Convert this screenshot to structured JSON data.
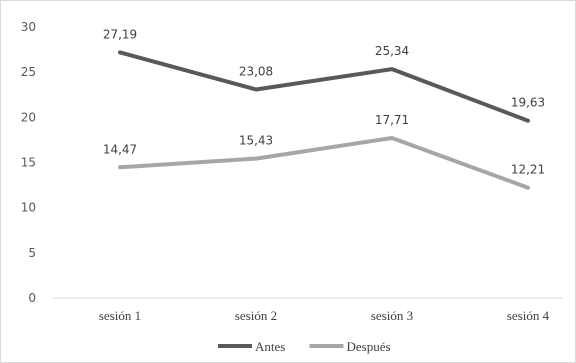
{
  "chart_data": {
    "type": "line",
    "categories": [
      "sesión 1",
      "sesión 2",
      "sesión 3",
      "sesión 4"
    ],
    "series": [
      {
        "name": "Antes",
        "values": [
          27.19,
          23.08,
          25.34,
          19.63
        ],
        "labels": [
          "27,19",
          "23,08",
          "25,34",
          "19,63"
        ],
        "color": "#595959"
      },
      {
        "name": "Después",
        "values": [
          14.47,
          15.43,
          17.71,
          12.21
        ],
        "labels": [
          "14,47",
          "15,43",
          "17,71",
          "12,21"
        ],
        "color": "#a6a6a6"
      }
    ],
    "ylim": [
      0,
      30
    ],
    "yticks": [
      0,
      5,
      10,
      15,
      20,
      25,
      30
    ],
    "grid": false,
    "legend": "bottom-center"
  }
}
